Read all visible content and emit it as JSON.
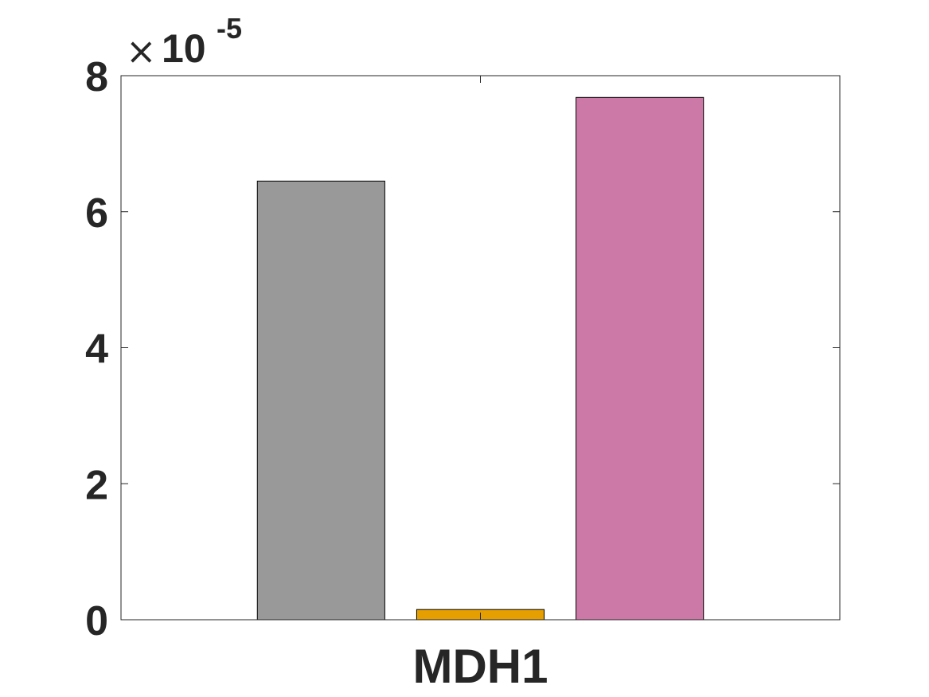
{
  "chart_data": {
    "type": "bar",
    "categories": [
      "MDH1"
    ],
    "series": [
      {
        "values": [
          6.45
        ],
        "color": "#999999"
      },
      {
        "values": [
          0.15
        ],
        "color": "#E69F00"
      },
      {
        "values": [
          7.68
        ],
        "color": "#CC79A7"
      }
    ],
    "ylim": [
      0,
      8
    ],
    "yticks": [
      0,
      2,
      4,
      6,
      8
    ],
    "ytick_labels": [
      "0",
      "2",
      "4",
      "6",
      "8"
    ],
    "y_exponent": {
      "times": "×",
      "base": "10",
      "power": "-5"
    },
    "grid": false,
    "title": "",
    "xlabel": "",
    "ylabel": ""
  }
}
